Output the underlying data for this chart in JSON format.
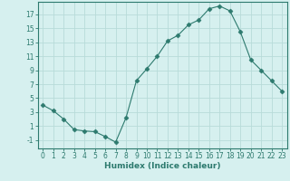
{
  "x": [
    0,
    1,
    2,
    3,
    4,
    5,
    6,
    7,
    8,
    9,
    10,
    11,
    12,
    13,
    14,
    15,
    16,
    17,
    18,
    19,
    20,
    21,
    22,
    23
  ],
  "y": [
    4,
    3.2,
    2,
    0.5,
    0.3,
    0.2,
    -0.5,
    -1.3,
    2.2,
    7.5,
    9.2,
    11.0,
    13.2,
    14.0,
    15.5,
    16.2,
    17.8,
    18.2,
    17.5,
    14.5,
    10.5,
    9.0,
    7.5,
    6.0
  ],
  "line_color": "#2d7a6e",
  "marker": "D",
  "marker_size": 2.5,
  "bg_color": "#d6f0ef",
  "grid_color": "#b8dbd9",
  "xlabel": "Humidex (Indice chaleur)",
  "xlim": [
    -0.5,
    23.5
  ],
  "ylim": [
    -2.2,
    18.8
  ],
  "yticks": [
    -1,
    1,
    3,
    5,
    7,
    9,
    11,
    13,
    15,
    17
  ],
  "xticks": [
    0,
    1,
    2,
    3,
    4,
    5,
    6,
    7,
    8,
    9,
    10,
    11,
    12,
    13,
    14,
    15,
    16,
    17,
    18,
    19,
    20,
    21,
    22,
    23
  ],
  "tick_fontsize": 5.5,
  "xlabel_fontsize": 6.5,
  "axis_color": "#2d7a6e"
}
